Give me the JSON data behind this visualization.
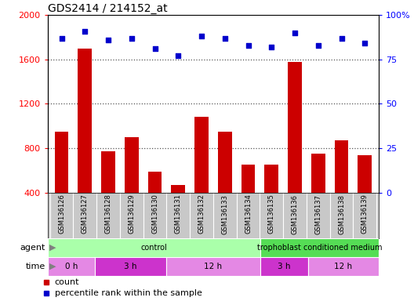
{
  "title": "GDS2414 / 214152_at",
  "samples": [
    "GSM136126",
    "GSM136127",
    "GSM136128",
    "GSM136129",
    "GSM136130",
    "GSM136131",
    "GSM136132",
    "GSM136133",
    "GSM136134",
    "GSM136135",
    "GSM136136",
    "GSM136137",
    "GSM136138",
    "GSM136139"
  ],
  "counts": [
    950,
    1700,
    770,
    900,
    590,
    470,
    1080,
    950,
    650,
    650,
    1580,
    750,
    870,
    740
  ],
  "percentile_ranks": [
    87,
    91,
    86,
    87,
    81,
    77,
    88,
    87,
    83,
    82,
    90,
    83,
    87,
    84
  ],
  "bar_color": "#cc0000",
  "dot_color": "#0000cc",
  "left_ylim": [
    400,
    2000
  ],
  "left_yticks": [
    400,
    800,
    1200,
    1600,
    2000
  ],
  "right_ylim": [
    0,
    100
  ],
  "right_yticks": [
    0,
    25,
    50,
    75,
    100
  ],
  "right_yticklabels": [
    "0",
    "25",
    "50",
    "75",
    "100%"
  ],
  "agent_groups": [
    {
      "label": "control",
      "start": 0,
      "end": 9,
      "color": "#aaffaa"
    },
    {
      "label": "trophoblast conditioned medium",
      "start": 9,
      "end": 14,
      "color": "#55dd55"
    }
  ],
  "time_groups": [
    {
      "label": "0 h",
      "start": 0,
      "end": 2,
      "color": "#e488e4"
    },
    {
      "label": "3 h",
      "start": 2,
      "end": 5,
      "color": "#cc33cc"
    },
    {
      "label": "12 h",
      "start": 5,
      "end": 9,
      "color": "#e488e4"
    },
    {
      "label": "3 h",
      "start": 9,
      "end": 11,
      "color": "#cc33cc"
    },
    {
      "label": "12 h",
      "start": 11,
      "end": 14,
      "color": "#e488e4"
    }
  ],
  "grid_color": "#000000",
  "bg_color": "#ffffff",
  "tick_area_color": "#c8c8c8"
}
